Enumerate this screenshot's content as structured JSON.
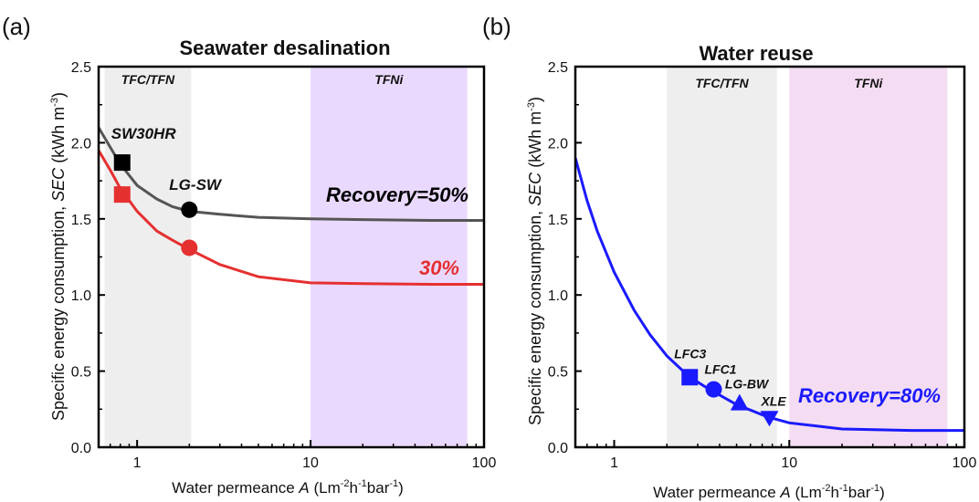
{
  "panels": [
    {
      "tag": "(a)",
      "title": "Seawater desalination",
      "title_color": "#000000",
      "ylabel_prefix": "Specific energy consumption, ",
      "ylabel_var": "SEC",
      "ylabel_unit": " (kWh m",
      "ylabel_sup": "-3",
      "ylabel_close": ")",
      "xlabel_prefix": "Water permeance ",
      "xlabel_var": "A",
      "xlabel_unit_parts": [
        "(Lm",
        "-2",
        "h",
        "-1",
        "bar",
        "-1",
        ")"
      ],
      "region_labels": [
        "TFC/TFN",
        "TFNi"
      ]
    },
    {
      "tag": "(b)",
      "title": "Water reuse",
      "title_color": "#1a1aff",
      "ylabel_prefix": "Specific energy consumption, ",
      "ylabel_var": "SEC",
      "ylabel_unit": " (kWh m",
      "ylabel_sup": "-3",
      "ylabel_close": ")",
      "xlabel_prefix": "Water permeance ",
      "xlabel_var": "A",
      "xlabel_unit_parts": [
        "(Lm",
        "-2",
        "h",
        "-1",
        "bar",
        "-1",
        ")"
      ],
      "region_labels": [
        "TFC/TFN",
        "TFNi"
      ]
    }
  ],
  "chart_data": [
    {
      "type": "line",
      "title": "Seawater desalination",
      "xlabel": "Water permeance A (Lm-2h-1bar-1)",
      "ylabel": "Specific energy consumption, SEC (kWh m-3)",
      "xscale": "log",
      "xlim": [
        0.6,
        100
      ],
      "ylim": [
        0.0,
        2.5
      ],
      "x_ticks": [
        "1",
        "10",
        "100"
      ],
      "y_ticks": [
        "0.0",
        "0.5",
        "1.0",
        "1.5",
        "2.0",
        "2.5"
      ],
      "regions": [
        {
          "label": "TFC/TFN",
          "x_range": [
            0.65,
            2.05
          ],
          "color": "#eeeeee"
        },
        {
          "label": "TFNi",
          "x_range": [
            10,
            80
          ],
          "color": "#ead9ff"
        }
      ],
      "series": [
        {
          "name": "Recovery=50%",
          "color": "#555555",
          "x": [
            0.6,
            0.7,
            0.8,
            1.0,
            1.3,
            1.6,
            2.0,
            3.0,
            5.0,
            10,
            20,
            50,
            100
          ],
          "y": [
            2.1,
            1.97,
            1.86,
            1.72,
            1.63,
            1.58,
            1.55,
            1.53,
            1.51,
            1.5,
            1.495,
            1.49,
            1.49
          ]
        },
        {
          "name": "30%",
          "color": "#e53030",
          "x": [
            0.6,
            0.7,
            0.8,
            1.0,
            1.3,
            1.6,
            2.0,
            3.0,
            5.0,
            10,
            20,
            50,
            100
          ],
          "y": [
            1.95,
            1.82,
            1.7,
            1.55,
            1.42,
            1.36,
            1.3,
            1.2,
            1.12,
            1.08,
            1.075,
            1.07,
            1.07
          ]
        }
      ],
      "markers": [
        {
          "label": "SW30HR",
          "x": 0.82,
          "y": 1.87,
          "shape": "square",
          "color": "#000000"
        },
        {
          "label": "",
          "x": 0.82,
          "y": 1.66,
          "shape": "square",
          "color": "#e53030"
        },
        {
          "label": "LG-SW",
          "x": 2.0,
          "y": 1.56,
          "shape": "circle",
          "color": "#000000"
        },
        {
          "label": "",
          "x": 2.0,
          "y": 1.31,
          "shape": "circle",
          "color": "#e53030"
        }
      ],
      "annotations": [
        {
          "text": "Recovery=50%",
          "color": "#000000"
        },
        {
          "text": "30%",
          "color": "#e53030"
        }
      ]
    },
    {
      "type": "line",
      "title": "Water reuse",
      "xlabel": "Water permeance A (Lm-2h-1bar-1)",
      "ylabel": "Specific energy consumption, SEC (kWh m-3)",
      "xscale": "log",
      "xlim": [
        0.6,
        100
      ],
      "ylim": [
        0.0,
        2.5
      ],
      "x_ticks": [
        "1",
        "10",
        "100"
      ],
      "y_ticks": [
        "0.0",
        "0.5",
        "1.0",
        "1.5",
        "2.0",
        "2.5"
      ],
      "regions": [
        {
          "label": "TFC/TFN",
          "x_range": [
            2.0,
            8.5
          ],
          "color": "#eeeeee"
        },
        {
          "label": "TFNi",
          "x_range": [
            10,
            80
          ],
          "color": "#f4dcf2"
        }
      ],
      "series": [
        {
          "name": "Recovery=80%",
          "color": "#1a1aff",
          "x": [
            0.6,
            0.7,
            0.8,
            1.0,
            1.3,
            1.6,
            2.0,
            2.7,
            3.5,
            5.0,
            7.5,
            10,
            20,
            50,
            100
          ],
          "y": [
            1.9,
            1.62,
            1.42,
            1.15,
            0.9,
            0.74,
            0.6,
            0.46,
            0.38,
            0.28,
            0.2,
            0.16,
            0.12,
            0.11,
            0.11
          ]
        }
      ],
      "markers": [
        {
          "label": "LFC3",
          "x": 2.7,
          "y": 0.46,
          "shape": "square",
          "color": "#1a1aff"
        },
        {
          "label": "LFC1",
          "x": 3.7,
          "y": 0.38,
          "shape": "circle",
          "color": "#1a1aff"
        },
        {
          "label": "LG-BW",
          "x": 5.2,
          "y": 0.29,
          "shape": "triangle-up",
          "color": "#1a1aff"
        },
        {
          "label": "XLE",
          "x": 7.7,
          "y": 0.19,
          "shape": "triangle-down",
          "color": "#1a1aff"
        }
      ],
      "annotations": [
        {
          "text": "Recovery=80%",
          "color": "#1a1aff"
        }
      ]
    }
  ]
}
